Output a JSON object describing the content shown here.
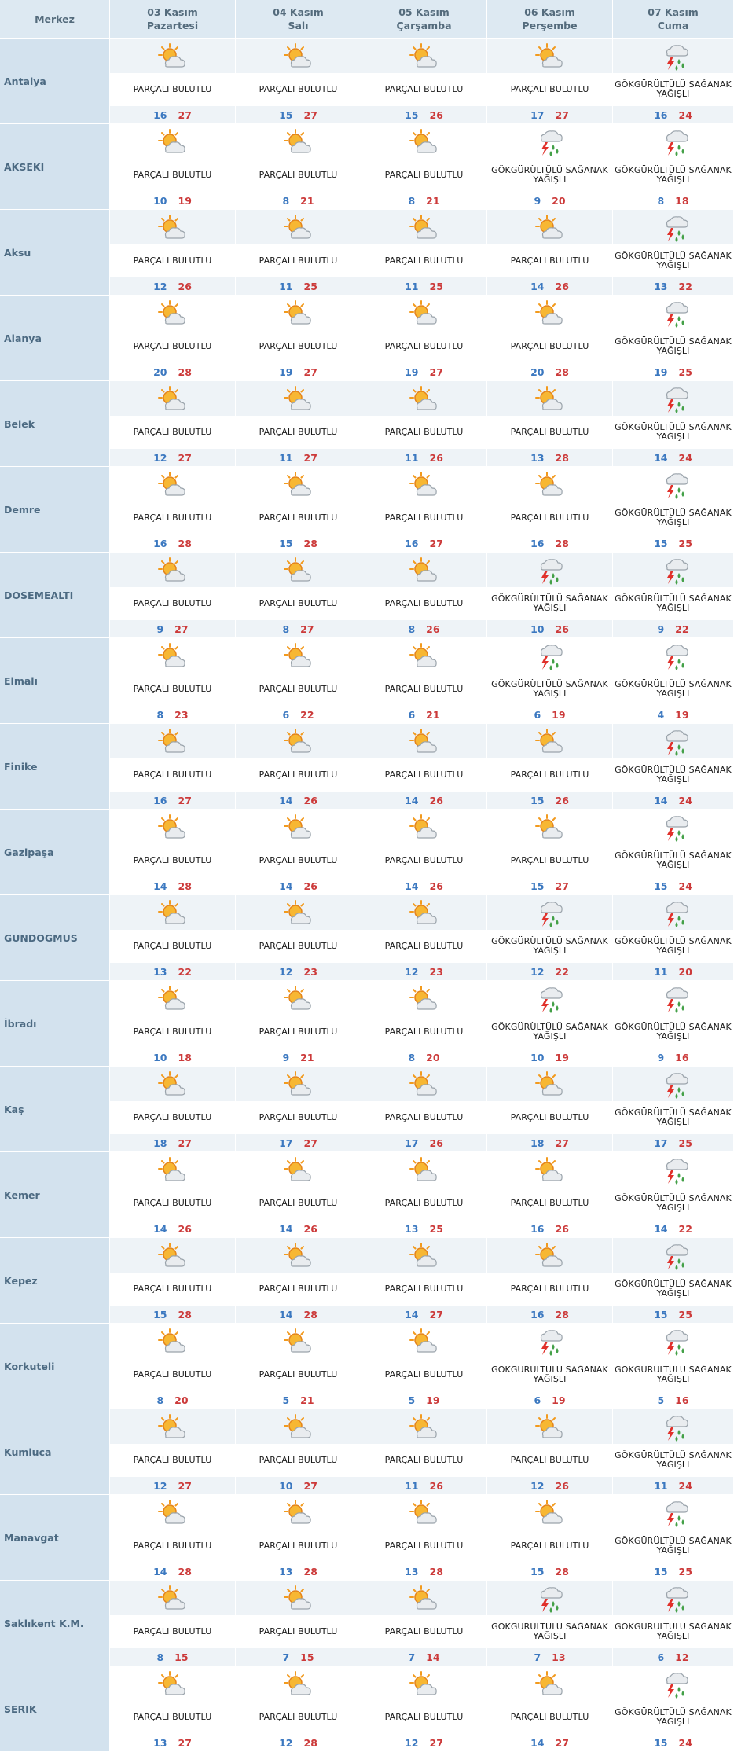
{
  "header": {
    "merkez": "Merkez",
    "days": [
      {
        "date": "03 Kasım",
        "weekday": "Pazartesi"
      },
      {
        "date": "04 Kasım",
        "weekday": "Salı"
      },
      {
        "date": "05 Kasım",
        "weekday": "Çarşamba"
      },
      {
        "date": "06 Kasım",
        "weekday": "Perşembe"
      },
      {
        "date": "07 Kasım",
        "weekday": "Cuma"
      }
    ]
  },
  "conditions": {
    "pb": "PARÇALI BULUTLU",
    "gsy": "GÖKGÜRÜLTÜLÜ SAĞANAK YAĞIŞLI"
  },
  "icons": {
    "pb": "partly-cloudy-icon",
    "gsy": "thunderstorm-icon"
  },
  "colors": {
    "min_temp": "#3b78c0",
    "max_temp": "#cc3a3a",
    "header_bg": "#dde9f2",
    "city_bg": "#d3e2ee"
  },
  "rows": [
    {
      "city": "Antalya",
      "days": [
        {
          "c": "pb",
          "min": "16",
          "max": "27"
        },
        {
          "c": "pb",
          "min": "15",
          "max": "27"
        },
        {
          "c": "pb",
          "min": "15",
          "max": "26"
        },
        {
          "c": "pb",
          "min": "17",
          "max": "27"
        },
        {
          "c": "gsy",
          "min": "16",
          "max": "24"
        }
      ]
    },
    {
      "city": "AKSEKI",
      "days": [
        {
          "c": "pb",
          "min": "10",
          "max": "19"
        },
        {
          "c": "pb",
          "min": "8",
          "max": "21"
        },
        {
          "c": "pb",
          "min": "8",
          "max": "21"
        },
        {
          "c": "gsy",
          "min": "9",
          "max": "20"
        },
        {
          "c": "gsy",
          "min": "8",
          "max": "18"
        }
      ]
    },
    {
      "city": "Aksu",
      "days": [
        {
          "c": "pb",
          "min": "12",
          "max": "26"
        },
        {
          "c": "pb",
          "min": "11",
          "max": "25"
        },
        {
          "c": "pb",
          "min": "11",
          "max": "25"
        },
        {
          "c": "pb",
          "min": "14",
          "max": "26"
        },
        {
          "c": "gsy",
          "min": "13",
          "max": "22"
        }
      ]
    },
    {
      "city": "Alanya",
      "days": [
        {
          "c": "pb",
          "min": "20",
          "max": "28"
        },
        {
          "c": "pb",
          "min": "19",
          "max": "27"
        },
        {
          "c": "pb",
          "min": "19",
          "max": "27"
        },
        {
          "c": "pb",
          "min": "20",
          "max": "28"
        },
        {
          "c": "gsy",
          "min": "19",
          "max": "25"
        }
      ]
    },
    {
      "city": "Belek",
      "days": [
        {
          "c": "pb",
          "min": "12",
          "max": "27"
        },
        {
          "c": "pb",
          "min": "11",
          "max": "27"
        },
        {
          "c": "pb",
          "min": "11",
          "max": "26"
        },
        {
          "c": "pb",
          "min": "13",
          "max": "28"
        },
        {
          "c": "gsy",
          "min": "14",
          "max": "24"
        }
      ]
    },
    {
      "city": "Demre",
      "days": [
        {
          "c": "pb",
          "min": "16",
          "max": "28"
        },
        {
          "c": "pb",
          "min": "15",
          "max": "28"
        },
        {
          "c": "pb",
          "min": "16",
          "max": "27"
        },
        {
          "c": "pb",
          "min": "16",
          "max": "28"
        },
        {
          "c": "gsy",
          "min": "15",
          "max": "25"
        }
      ]
    },
    {
      "city": "DOSEMEALTI",
      "days": [
        {
          "c": "pb",
          "min": "9",
          "max": "27"
        },
        {
          "c": "pb",
          "min": "8",
          "max": "27"
        },
        {
          "c": "pb",
          "min": "8",
          "max": "26"
        },
        {
          "c": "gsy",
          "min": "10",
          "max": "26"
        },
        {
          "c": "gsy",
          "min": "9",
          "max": "22"
        }
      ]
    },
    {
      "city": "Elmalı",
      "days": [
        {
          "c": "pb",
          "min": "8",
          "max": "23"
        },
        {
          "c": "pb",
          "min": "6",
          "max": "22"
        },
        {
          "c": "pb",
          "min": "6",
          "max": "21"
        },
        {
          "c": "gsy",
          "min": "6",
          "max": "19"
        },
        {
          "c": "gsy",
          "min": "4",
          "max": "19"
        }
      ]
    },
    {
      "city": "Finike",
      "days": [
        {
          "c": "pb",
          "min": "16",
          "max": "27"
        },
        {
          "c": "pb",
          "min": "14",
          "max": "26"
        },
        {
          "c": "pb",
          "min": "14",
          "max": "26"
        },
        {
          "c": "pb",
          "min": "15",
          "max": "26"
        },
        {
          "c": "gsy",
          "min": "14",
          "max": "24"
        }
      ]
    },
    {
      "city": "Gazipaşa",
      "days": [
        {
          "c": "pb",
          "min": "14",
          "max": "28"
        },
        {
          "c": "pb",
          "min": "14",
          "max": "26"
        },
        {
          "c": "pb",
          "min": "14",
          "max": "26"
        },
        {
          "c": "pb",
          "min": "15",
          "max": "27"
        },
        {
          "c": "gsy",
          "min": "15",
          "max": "24"
        }
      ]
    },
    {
      "city": "GUNDOGMUS",
      "days": [
        {
          "c": "pb",
          "min": "13",
          "max": "22"
        },
        {
          "c": "pb",
          "min": "12",
          "max": "23"
        },
        {
          "c": "pb",
          "min": "12",
          "max": "23"
        },
        {
          "c": "gsy",
          "min": "12",
          "max": "22"
        },
        {
          "c": "gsy",
          "min": "11",
          "max": "20"
        }
      ]
    },
    {
      "city": "İbradı",
      "days": [
        {
          "c": "pb",
          "min": "10",
          "max": "18"
        },
        {
          "c": "pb",
          "min": "9",
          "max": "21"
        },
        {
          "c": "pb",
          "min": "8",
          "max": "20"
        },
        {
          "c": "gsy",
          "min": "10",
          "max": "19"
        },
        {
          "c": "gsy",
          "min": "9",
          "max": "16"
        }
      ]
    },
    {
      "city": "Kaş",
      "days": [
        {
          "c": "pb",
          "min": "18",
          "max": "27"
        },
        {
          "c": "pb",
          "min": "17",
          "max": "27"
        },
        {
          "c": "pb",
          "min": "17",
          "max": "26"
        },
        {
          "c": "pb",
          "min": "18",
          "max": "27"
        },
        {
          "c": "gsy",
          "min": "17",
          "max": "25"
        }
      ]
    },
    {
      "city": "Kemer",
      "days": [
        {
          "c": "pb",
          "min": "14",
          "max": "26"
        },
        {
          "c": "pb",
          "min": "14",
          "max": "26"
        },
        {
          "c": "pb",
          "min": "13",
          "max": "25"
        },
        {
          "c": "pb",
          "min": "16",
          "max": "26"
        },
        {
          "c": "gsy",
          "min": "14",
          "max": "22"
        }
      ]
    },
    {
      "city": "Kepez",
      "days": [
        {
          "c": "pb",
          "min": "15",
          "max": "28"
        },
        {
          "c": "pb",
          "min": "14",
          "max": "28"
        },
        {
          "c": "pb",
          "min": "14",
          "max": "27"
        },
        {
          "c": "pb",
          "min": "16",
          "max": "28"
        },
        {
          "c": "gsy",
          "min": "15",
          "max": "25"
        }
      ]
    },
    {
      "city": "Korkuteli",
      "days": [
        {
          "c": "pb",
          "min": "8",
          "max": "20"
        },
        {
          "c": "pb",
          "min": "5",
          "max": "21"
        },
        {
          "c": "pb",
          "min": "5",
          "max": "19"
        },
        {
          "c": "gsy",
          "min": "6",
          "max": "19"
        },
        {
          "c": "gsy",
          "min": "5",
          "max": "16"
        }
      ]
    },
    {
      "city": "Kumluca",
      "days": [
        {
          "c": "pb",
          "min": "12",
          "max": "27"
        },
        {
          "c": "pb",
          "min": "10",
          "max": "27"
        },
        {
          "c": "pb",
          "min": "11",
          "max": "26"
        },
        {
          "c": "pb",
          "min": "12",
          "max": "26"
        },
        {
          "c": "gsy",
          "min": "11",
          "max": "24"
        }
      ]
    },
    {
      "city": "Manavgat",
      "days": [
        {
          "c": "pb",
          "min": "14",
          "max": "28"
        },
        {
          "c": "pb",
          "min": "13",
          "max": "28"
        },
        {
          "c": "pb",
          "min": "13",
          "max": "28"
        },
        {
          "c": "pb",
          "min": "15",
          "max": "28"
        },
        {
          "c": "gsy",
          "min": "15",
          "max": "25"
        }
      ]
    },
    {
      "city": "Saklıkent K.M.",
      "days": [
        {
          "c": "pb",
          "min": "8",
          "max": "15"
        },
        {
          "c": "pb",
          "min": "7",
          "max": "15"
        },
        {
          "c": "pb",
          "min": "7",
          "max": "14"
        },
        {
          "c": "gsy",
          "min": "7",
          "max": "13"
        },
        {
          "c": "gsy",
          "min": "6",
          "max": "12"
        }
      ]
    },
    {
      "city": "SERIK",
      "days": [
        {
          "c": "pb",
          "min": "13",
          "max": "27"
        },
        {
          "c": "pb",
          "min": "12",
          "max": "28"
        },
        {
          "c": "pb",
          "min": "12",
          "max": "27"
        },
        {
          "c": "pb",
          "min": "14",
          "max": "27"
        },
        {
          "c": "gsy",
          "min": "15",
          "max": "24"
        }
      ]
    }
  ]
}
